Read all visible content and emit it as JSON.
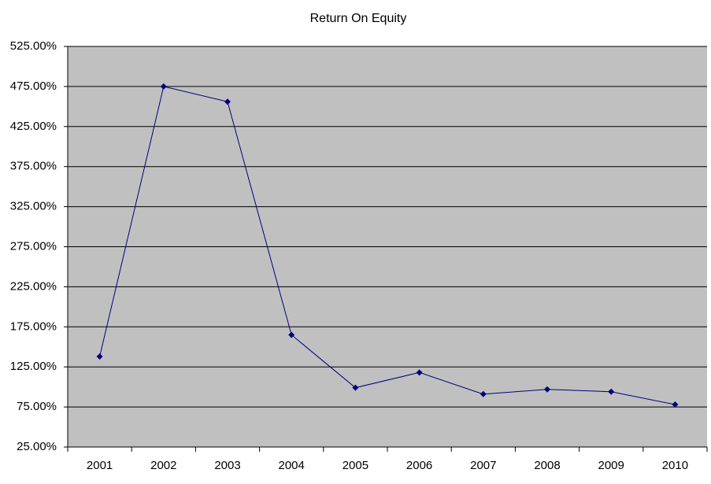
{
  "chart_data": {
    "type": "line",
    "title": "Return On Equity",
    "categories": [
      "2001",
      "2002",
      "2003",
      "2004",
      "2005",
      "2006",
      "2007",
      "2008",
      "2009",
      "2010"
    ],
    "values": [
      138,
      475,
      456,
      165,
      99,
      118,
      91,
      97,
      94,
      78
    ],
    "color": "#000080",
    "ylim": [
      25,
      525
    ],
    "yticks": [
      {
        "value": 25,
        "label": "25.00%"
      },
      {
        "value": 75,
        "label": "75.00%"
      },
      {
        "value": 125,
        "label": "125.00%"
      },
      {
        "value": 175,
        "label": "175.00%"
      },
      {
        "value": 225,
        "label": "225.00%"
      },
      {
        "value": 275,
        "label": "275.00%"
      },
      {
        "value": 325,
        "label": "325.00%"
      },
      {
        "value": 375,
        "label": "375.00%"
      },
      {
        "value": 425,
        "label": "425.00%"
      },
      {
        "value": 475,
        "label": "475.00%"
      },
      {
        "value": 525,
        "label": "525.00%"
      }
    ],
    "grid": true
  }
}
